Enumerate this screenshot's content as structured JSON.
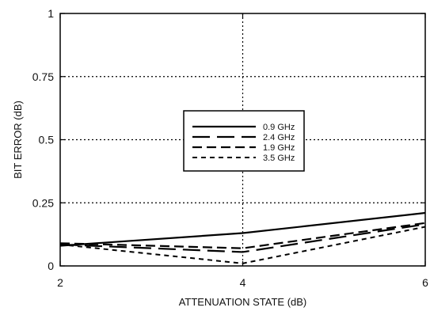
{
  "chart_data": {
    "type": "line",
    "title": "",
    "xlabel": "ATTENUATION STATE (dB)",
    "ylabel": "BIT ERROR (dB)",
    "xlim": [
      2,
      6
    ],
    "ylim": [
      0,
      1
    ],
    "x_ticks": [
      2,
      4,
      6
    ],
    "y_ticks": [
      0,
      0.25,
      0.5,
      0.75,
      1
    ],
    "x_tick_labels": [
      "2",
      "4",
      "6"
    ],
    "y_tick_labels": [
      "0",
      "0.25",
      "0.5",
      "0.75",
      "1"
    ],
    "grid": "dotted",
    "legend_position": "center",
    "x": [
      2,
      4,
      6
    ],
    "series": [
      {
        "name": "0.9 GHz",
        "values": [
          0.08,
          0.13,
          0.21
        ],
        "style": "solid"
      },
      {
        "name": "2.4 GHz",
        "values": [
          0.085,
          0.055,
          0.165
        ],
        "style": "long-dash"
      },
      {
        "name": "1.9 GHz",
        "values": [
          0.09,
          0.07,
          0.17
        ],
        "style": "medium-dash"
      },
      {
        "name": "3.5 GHz",
        "values": [
          0.085,
          0.01,
          0.155
        ],
        "style": "short-dash"
      }
    ],
    "colors": {
      "axis": "#000000",
      "grid": "#000000",
      "series": "#000000"
    }
  }
}
